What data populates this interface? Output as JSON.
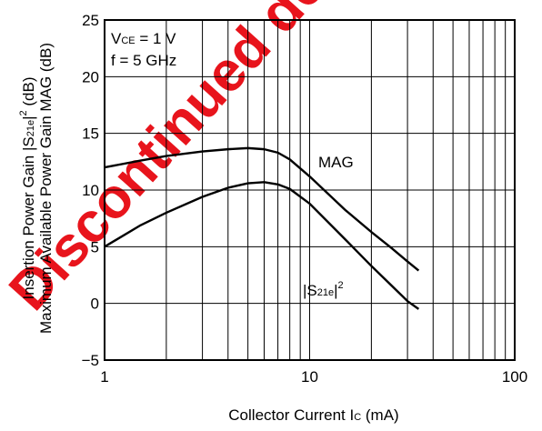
{
  "chart_data": {
    "type": "line",
    "x_scale": "log",
    "xlim": [
      1,
      100
    ],
    "ylim": [
      -5,
      25
    ],
    "grid": true,
    "x_ticks": [
      "1",
      "10",
      "100"
    ],
    "y_ticks": [
      "25",
      "20",
      "15",
      "10",
      "5",
      "0",
      "−5"
    ],
    "xlabel": {
      "main": "Collector Current  I",
      "sub": "C",
      "unit": " (mA)"
    },
    "ylabel_1": {
      "pre": "Insertion Power Gain  |S",
      "sub": "21e",
      "mid": "|",
      "sup": "2",
      "post": " (dB)"
    },
    "ylabel_2": "Maximum Available Power Gain  MAG (dB)",
    "conditions": {
      "vce": {
        "pre": "V",
        "sub": "CE",
        "post": " = 1 V"
      },
      "freq": "f = 5 GHz"
    },
    "series": [
      {
        "name": "MAG",
        "x": [
          1,
          1.5,
          2,
          3,
          4,
          5,
          6,
          7,
          8,
          10,
          15,
          20,
          25,
          30,
          34
        ],
        "y": [
          12.0,
          12.6,
          13.0,
          13.4,
          13.6,
          13.7,
          13.6,
          13.3,
          12.7,
          11.2,
          8.2,
          6.3,
          4.9,
          3.7,
          2.9
        ]
      },
      {
        "name": "|S21e|2",
        "x": [
          1,
          1.5,
          2,
          3,
          4,
          5,
          6,
          7,
          8,
          10,
          15,
          20,
          25,
          30,
          34
        ],
        "y": [
          5.0,
          6.9,
          8.0,
          9.4,
          10.2,
          10.6,
          10.7,
          10.5,
          10.1,
          8.8,
          5.6,
          3.3,
          1.6,
          0.2,
          -0.5
        ]
      }
    ],
    "series_labels": {
      "mag": "MAG",
      "s21": {
        "pre": "|S",
        "sub": "21e",
        "mid": "|",
        "sup": "2"
      }
    }
  },
  "watermark": "Discontinued design",
  "colors": {
    "watermark": "#e8141c",
    "line": "#000000",
    "grid": "#000000"
  }
}
